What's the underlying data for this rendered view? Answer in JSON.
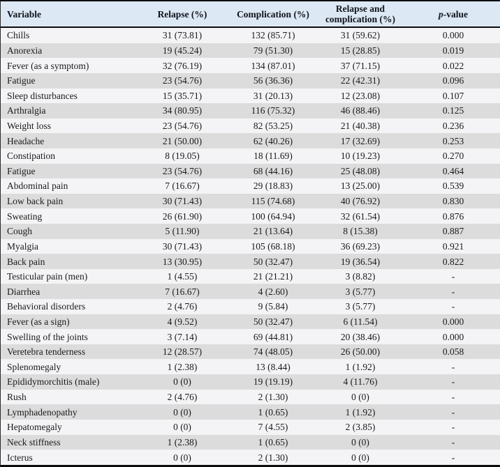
{
  "table": {
    "columns": [
      "Variable",
      "Relapse (%)",
      "Complication (%)",
      "Relapse and complication (%)"
    ],
    "p_column": {
      "italic": "p",
      "rest": "-value"
    },
    "rows": [
      [
        "Chills",
        "31 (73.81)",
        "132 (85.71)",
        "31 (59.62)",
        "0.000"
      ],
      [
        "Anorexia",
        "19 (45.24)",
        "79 (51.30)",
        "15 (28.85)",
        "0.019"
      ],
      [
        "Fever (as a symptom)",
        "32 (76.19)",
        "134 (87.01)",
        "37 (71.15)",
        "0.022"
      ],
      [
        "Fatigue",
        "23 (54.76)",
        "56 (36.36)",
        "22 (42.31)",
        "0.096"
      ],
      [
        "Sleep disturbances",
        "15 (35.71)",
        "31 (20.13)",
        "12 (23.08)",
        "0.107"
      ],
      [
        "Arthralgia",
        "34 (80.95)",
        "116 (75.32)",
        "46 (88.46)",
        "0.125"
      ],
      [
        "Weight loss",
        "23 (54.76)",
        "82 (53.25)",
        "21 (40.38)",
        "0.236"
      ],
      [
        "Headache",
        "21 (50.00)",
        "62 (40.26)",
        "17 (32.69)",
        "0.253"
      ],
      [
        "Constipation",
        "8 (19.05)",
        "18 (11.69)",
        "10 (19.23)",
        "0.270"
      ],
      [
        "Fatigue",
        "23 (54.76)",
        "68 (44.16)",
        "25 (48.08)",
        "0.464"
      ],
      [
        "Abdominal pain",
        "7 (16.67)",
        "29 (18.83)",
        "13 (25.00)",
        "0.539"
      ],
      [
        "Low back pain",
        "30 (71.43)",
        "115 (74.68)",
        "40 (76.92)",
        "0.830"
      ],
      [
        "Sweating",
        "26 (61.90)",
        "100 (64.94)",
        "32 (61.54)",
        "0.876"
      ],
      [
        "Cough",
        "5 (11.90)",
        "21 (13.64)",
        "8 (15.38)",
        "0.887"
      ],
      [
        "Myalgia",
        "30 (71.43)",
        "105 (68.18)",
        "36 (69.23)",
        "0.921"
      ],
      [
        "Back pain",
        "13 (30.95)",
        "50 (32.47)",
        "19 (36.54)",
        "0.822"
      ],
      [
        "Testicular pain (men)",
        "1 (4.55)",
        "21 (21.21)",
        "3 (8.82)",
        "-"
      ],
      [
        "Diarrhea",
        "7 (16.67)",
        "4 (2.60)",
        "3 (5.77)",
        "-"
      ],
      [
        "Behavioral disorders",
        "2 (4.76)",
        "9 (5.84)",
        "3 (5.77)",
        "-"
      ],
      [
        "Fever (as a sign)",
        "4 (9.52)",
        "50 (32.47)",
        "6 (11.54)",
        "0.000"
      ],
      [
        "Swelling of the joints",
        "3 (7.14)",
        "69 (44.81)",
        "20 (38.46)",
        "0.000"
      ],
      [
        "Veretebra tenderness",
        "12 (28.57)",
        "74 (48.05)",
        "26 (50.00)",
        "0.058"
      ],
      [
        "Splenomegaly",
        "1 (2.38)",
        "13 (8.44)",
        "1 (1.92)",
        "-"
      ],
      [
        "Epididymorchitis (male)",
        "0 (0)",
        "19 (19.19)",
        "4 (11.76)",
        "-"
      ],
      [
        "Rush",
        "2 (4.76)",
        "2 (1.30)",
        "0 (0)",
        "-"
      ],
      [
        "Lymphadenopathy",
        "0 (0)",
        "1 (0.65)",
        "1 (1.92)",
        "-"
      ],
      [
        "Hepatomegaly",
        "0 (0)",
        "7 (4.55)",
        "2 (3.85)",
        "-"
      ],
      [
        "Neck stiffness",
        "1 (2.38)",
        "1 (0.65)",
        "0 (0)",
        "-"
      ],
      [
        "Icterus",
        "0 (0)",
        "2 (1.30)",
        "0 (0)",
        "-"
      ]
    ]
  },
  "colors": {
    "header_bg": "#dce8f4",
    "row_light": "#f4f4f6",
    "row_dark": "#dcdcdc",
    "border": "#0b0b0b",
    "text": "#1a1a1a"
  }
}
